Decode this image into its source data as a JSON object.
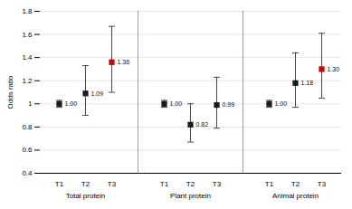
{
  "chart_data": {
    "type": "errorbar",
    "categories": [
      "T1",
      "T2",
      "T3"
    ],
    "series": [
      {
        "name": "Total protein",
        "values": [
          1,
          1.09,
          1.36
        ],
        "value_labels": [
          "1.00",
          "1.09",
          "1.36"
        ],
        "ci_lower": [
          0.97,
          0.9,
          1.1
        ],
        "ci_upper": [
          1.03,
          1.33,
          1.67
        ],
        "colors": [
          "#1a1a1a",
          "#1a1a1a",
          "#cc0000"
        ]
      },
      {
        "name": "Plant protein",
        "values": [
          1,
          0.82,
          0.99
        ],
        "value_labels": [
          "1.00",
          "0.82",
          "0.99"
        ],
        "ci_lower": [
          0.97,
          0.67,
          0.79
        ],
        "ci_upper": [
          1.03,
          1.0,
          1.23
        ],
        "colors": [
          "#1a1a1a",
          "#1a1a1a",
          "#1a1a1a"
        ]
      },
      {
        "name": "Animal protein",
        "values": [
          1,
          1.18,
          1.3
        ],
        "value_labels": [
          "1.00",
          "1.18",
          "1.30"
        ],
        "ci_lower": [
          0.97,
          0.97,
          1.05
        ],
        "ci_upper": [
          1.03,
          1.44,
          1.61
        ],
        "colors": [
          "#1a1a1a",
          "#1a1a1a",
          "#cc0000"
        ]
      }
    ],
    "ylabel": "Odds ratio",
    "ylim": [
      0.4,
      1.8
    ],
    "yticks": [
      0.4,
      0.6,
      0.8,
      1,
      1.2,
      1.4,
      1.6,
      1.8
    ],
    "grid": true,
    "data_labels": true,
    "marker": "square"
  }
}
